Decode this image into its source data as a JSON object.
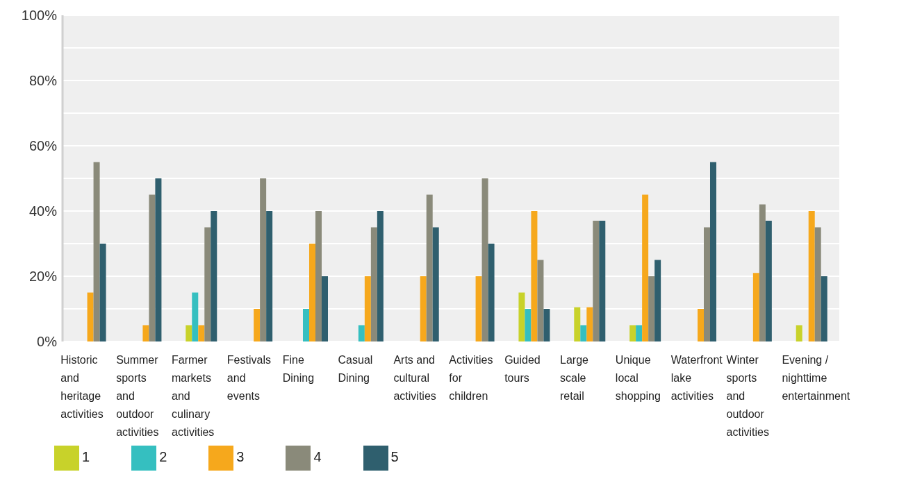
{
  "chart_data": {
    "type": "bar",
    "categories": [
      "Historic and heritage activities",
      "Summer sports and outdoor activities",
      "Farmer markets and culinary activities",
      "Festivals and events",
      "Fine Dining",
      "Casual Dining",
      "Arts and cultural activities",
      "Activities for children",
      "Guided tours",
      "Large scale retail",
      "Unique local shopping",
      "Waterfront lake activities",
      "Winter sports and outdoor activities",
      "Evening / nighttime entertainment"
    ],
    "series": [
      {
        "name": "1",
        "color": "#c8d22a",
        "values": [
          0,
          0,
          5,
          0,
          0,
          0,
          0,
          0,
          15,
          10.5,
          5,
          0,
          0,
          5
        ]
      },
      {
        "name": "2",
        "color": "#35bfc0",
        "values": [
          0,
          0,
          15,
          0,
          10,
          5,
          0,
          0,
          10,
          5,
          5,
          0,
          0,
          0
        ]
      },
      {
        "name": "3",
        "color": "#f6a81c",
        "values": [
          15,
          5,
          5,
          10,
          30,
          20,
          20,
          20,
          40,
          10.5,
          45,
          10,
          21,
          40
        ]
      },
      {
        "name": "4",
        "color": "#8a8a7a",
        "values": [
          55,
          45,
          35,
          50,
          40,
          35,
          45,
          50,
          25,
          37,
          20,
          35,
          42,
          35
        ]
      },
      {
        "name": "5",
        "color": "#2f5f6e",
        "values": [
          30,
          50,
          40,
          40,
          20,
          40,
          35,
          30,
          10,
          37,
          25,
          55,
          37,
          20
        ]
      }
    ],
    "ylim": [
      0,
      100
    ],
    "yticks": [
      {
        "value": 0,
        "label": "0%"
      },
      {
        "value": 10,
        "label": null
      },
      {
        "value": 20,
        "label": "20%"
      },
      {
        "value": 30,
        "label": null
      },
      {
        "value": 40,
        "label": "40%"
      },
      {
        "value": 50,
        "label": null
      },
      {
        "value": 60,
        "label": "60%"
      },
      {
        "value": 70,
        "label": null
      },
      {
        "value": 80,
        "label": "80%"
      },
      {
        "value": 90,
        "label": null
      },
      {
        "value": 100,
        "label": "100%"
      }
    ],
    "grid": "y",
    "legend": "bottom left"
  }
}
